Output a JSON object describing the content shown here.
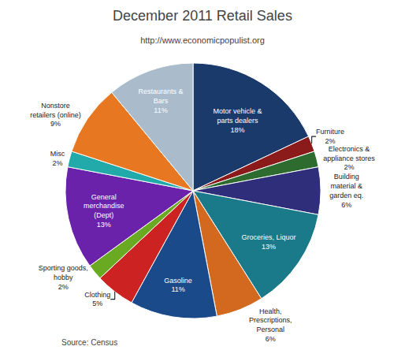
{
  "chart_data": {
    "type": "pie",
    "title": "December 2011 Retail Sales",
    "subtitle": "http://www.economicpopulist.org",
    "source": "Source: Census",
    "categories": [
      "Motor vehicle &\nparts dealers\n18%",
      "Furniture\n2%",
      "Electronics &\nappliance stores\n2%",
      "Building\nmaterial &\ngarden eq.\n6%",
      "Groceries, Liquor\n13%",
      "Health,\nPrescriptions,\nPersonal\n6%",
      "Gasoline\n11%",
      "Clothing\n5%",
      "Sporting goods,\nhobby\n2%",
      "General\nmerchandise\n(Dept)\n13%",
      "Misc\n2%",
      "Nonstore\nretailers (online)\n9%",
      "Restaurants &\nBars\n11%"
    ],
    "values": [
      18,
      2,
      2,
      6,
      13,
      6,
      11,
      5,
      2,
      13,
      2,
      9,
      11
    ],
    "colors": [
      "#1a3a6b",
      "#8b1a1a",
      "#2e6b2e",
      "#2e2e7a",
      "#1a7a8a",
      "#d2691e",
      "#1a4a8a",
      "#cc2222",
      "#6aaa22",
      "#6a22aa",
      "#22aaaa",
      "#e87722",
      "#aabbcc"
    ]
  }
}
